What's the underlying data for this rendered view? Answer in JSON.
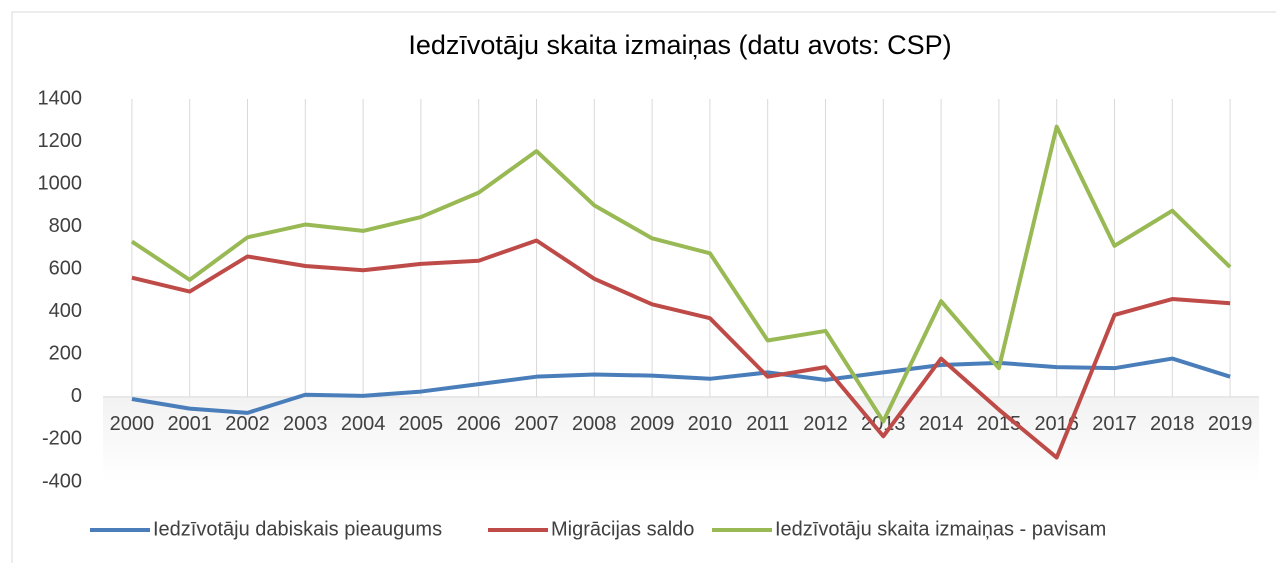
{
  "chart_data": {
    "type": "line",
    "title": "Iedzīvotāju skaita izmaiņas (datu avots: CSP)",
    "categories": [
      "2000",
      "2001",
      "2002",
      "2003",
      "2004",
      "2005",
      "2006",
      "2007",
      "2008",
      "2009",
      "2010",
      "2011",
      "2012",
      "2013",
      "2014",
      "2015",
      "2016",
      "2017",
      "2018",
      "2019"
    ],
    "series": [
      {
        "name": "Iedzīvotāju dabiskais pieaugums",
        "color": "#4a7ebb",
        "values": [
          -10,
          -55,
          -75,
          10,
          5,
          25,
          60,
          95,
          105,
          100,
          85,
          115,
          80,
          115,
          150,
          160,
          140,
          135,
          180,
          95
        ]
      },
      {
        "name": "Migrācijas saldo",
        "color": "#be4b48",
        "values": [
          560,
          495,
          660,
          615,
          595,
          625,
          640,
          735,
          555,
          435,
          370,
          95,
          140,
          -185,
          180,
          -60,
          -285,
          385,
          460,
          440
        ]
      },
      {
        "name": "Iedzīvotāju skaita izmaiņas - pavisam",
        "color": "#98b954",
        "values": [
          730,
          550,
          750,
          810,
          780,
          845,
          960,
          1155,
          900,
          745,
          675,
          265,
          310,
          -115,
          450,
          135,
          1270,
          710,
          875,
          610
        ]
      }
    ],
    "ylim": [
      -400,
      1400
    ],
    "yticks": [
      -400,
      -200,
      0,
      200,
      400,
      600,
      800,
      1000,
      1200,
      1400
    ],
    "grid": true,
    "legend": "bottom"
  }
}
